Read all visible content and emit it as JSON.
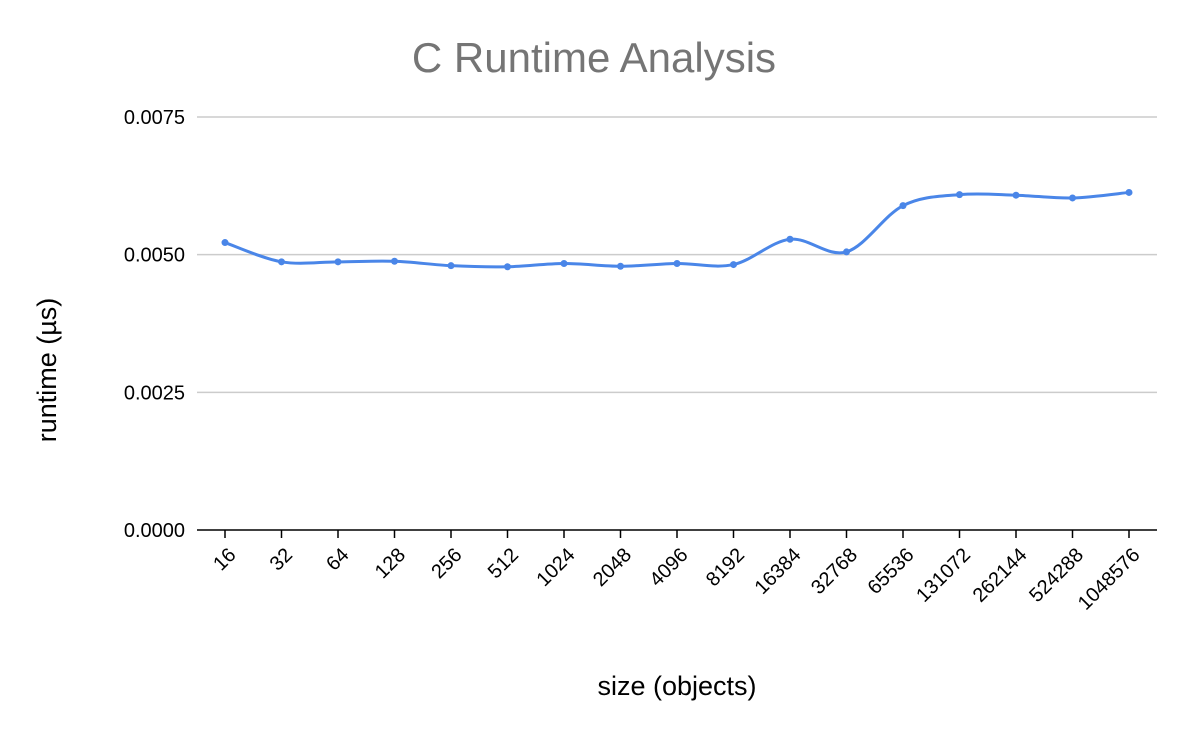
{
  "chart_data": {
    "type": "line",
    "title": "C Runtime Analysis",
    "xlabel": "size (objects)",
    "ylabel": "runtime (µs)",
    "categories": [
      "16",
      "32",
      "64",
      "128",
      "256",
      "512",
      "1024",
      "2048",
      "4096",
      "8192",
      "16384",
      "32768",
      "65536",
      "131072",
      "262144",
      "524288",
      "1048576"
    ],
    "series": [
      {
        "values": [
          0.00522,
          0.00487,
          0.00487,
          0.00488,
          0.0048,
          0.00478,
          0.00484,
          0.00479,
          0.00484,
          0.00482,
          0.00528,
          0.00505,
          0.00589,
          0.00609,
          0.00608,
          0.00603,
          0.00613
        ],
        "color": "#4a86e8"
      }
    ],
    "ylim": [
      0,
      0.0075
    ],
    "yticks": [
      "0.0000",
      "0.0025",
      "0.0050",
      "0.0075"
    ],
    "ytick_values": [
      0,
      0.0025,
      0.005,
      0.0075
    ],
    "grid": true,
    "legend": "none",
    "colors": {
      "title": "#757575",
      "text": "#000000",
      "grid": "#cccccc",
      "axis": "#000000"
    }
  }
}
